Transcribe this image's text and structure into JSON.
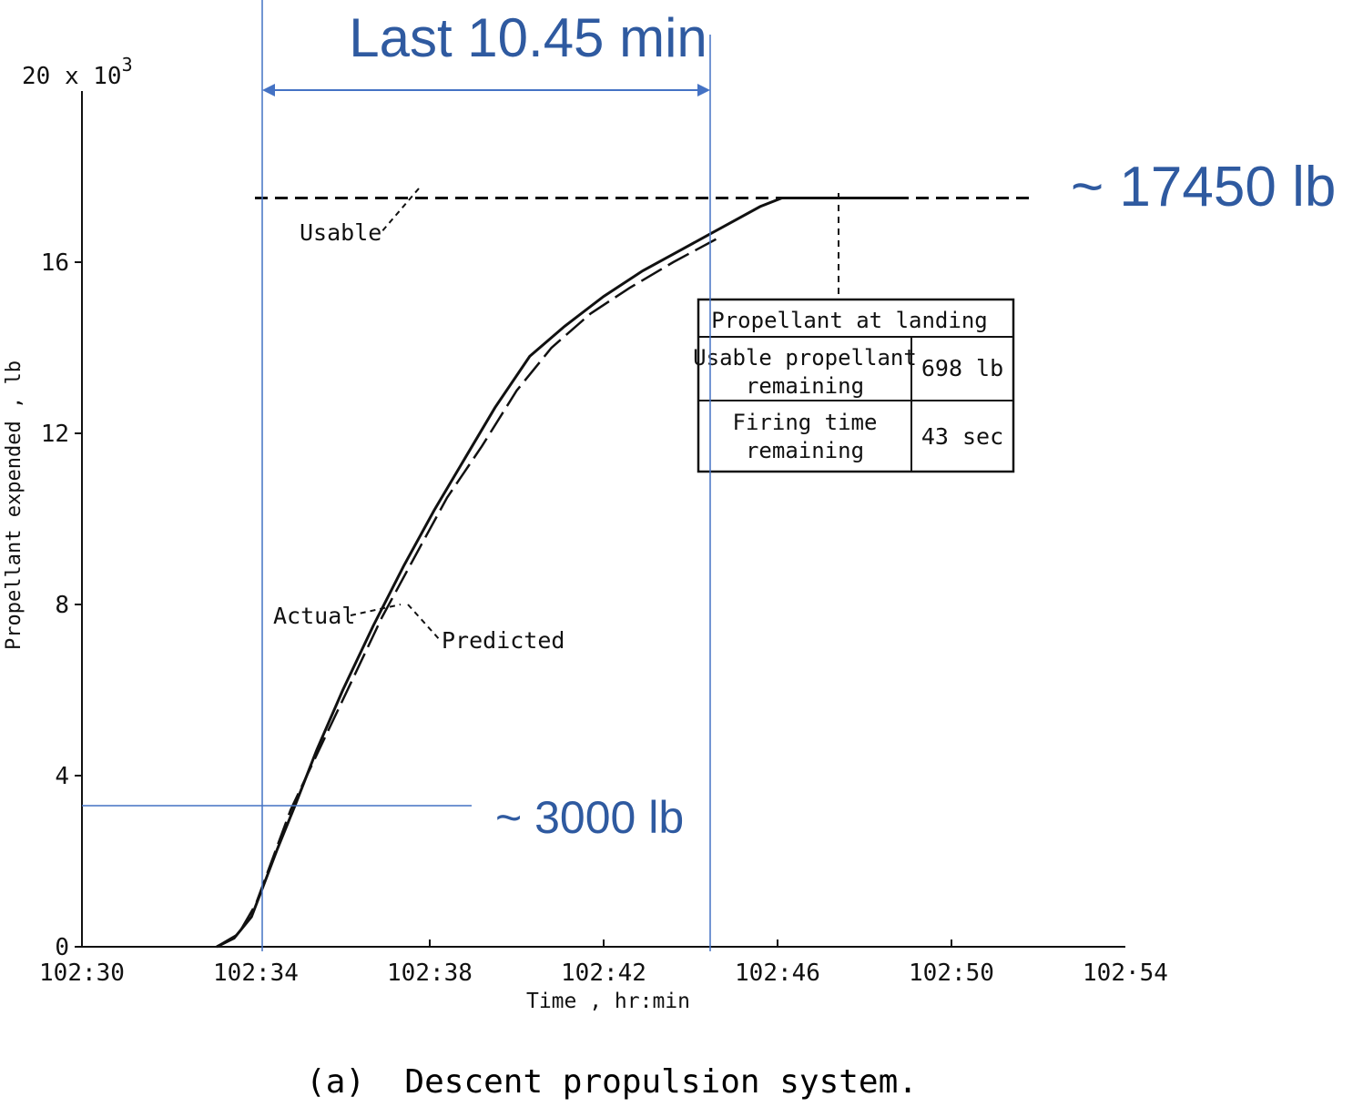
{
  "chart_data": {
    "type": "line",
    "caption": "(a)  Descent propulsion system.",
    "xlabel": "Time , hr:min",
    "ylabel": "Propellant expended , lb",
    "y_multiplier_label": "20 x 10",
    "y_multiplier_exp": "3",
    "xlim_min": [
      0,
      24
    ],
    "ylim": [
      0,
      20
    ],
    "x_ticks": [
      {
        "min": 0,
        "label": "102:30"
      },
      {
        "min": 4,
        "label": "102:34"
      },
      {
        "min": 8,
        "label": "102:38"
      },
      {
        "min": 12,
        "label": "102:42"
      },
      {
        "min": 16,
        "label": "102:46"
      },
      {
        "min": 20,
        "label": "102:50"
      },
      {
        "min": 24,
        "label": "102·54"
      }
    ],
    "x_minor_ticks": [
      8,
      12,
      16,
      20
    ],
    "y_ticks": [
      {
        "v": 0,
        "label": "0"
      },
      {
        "v": 4,
        "label": "4"
      },
      {
        "v": 8,
        "label": "8"
      },
      {
        "v": 12,
        "label": "12"
      },
      {
        "v": 16,
        "label": "16"
      }
    ],
    "usable_level": 17.5,
    "usable_label": "Usable",
    "series": [
      {
        "name": "Actual",
        "style": "solid",
        "points": [
          [
            3.1,
            0
          ],
          [
            3.5,
            0.2
          ],
          [
            3.9,
            0.7
          ],
          [
            4.2,
            1.5
          ],
          [
            4.5,
            2.3
          ],
          [
            4.9,
            3.3
          ],
          [
            5.4,
            4.6
          ],
          [
            6.0,
            6.0
          ],
          [
            6.7,
            7.5
          ],
          [
            7.4,
            8.9
          ],
          [
            8.1,
            10.2
          ],
          [
            8.8,
            11.4
          ],
          [
            9.5,
            12.6
          ],
          [
            10.3,
            13.8
          ],
          [
            11.1,
            14.5
          ],
          [
            12.0,
            15.2
          ],
          [
            12.9,
            15.8
          ],
          [
            13.8,
            16.3
          ],
          [
            14.7,
            16.8
          ],
          [
            15.6,
            17.3
          ],
          [
            16.1,
            17.5
          ],
          [
            19.0,
            17.5
          ]
        ]
      },
      {
        "name": "Predicted",
        "style": "dashed",
        "points": [
          [
            3.1,
            0
          ],
          [
            3.6,
            0.3
          ],
          [
            4.0,
            1.0
          ],
          [
            4.4,
            2.1
          ],
          [
            4.8,
            3.2
          ],
          [
            5.5,
            4.7
          ],
          [
            6.2,
            6.2
          ],
          [
            6.9,
            7.7
          ],
          [
            7.7,
            9.2
          ],
          [
            8.4,
            10.5
          ],
          [
            9.2,
            11.7
          ],
          [
            10.0,
            13.0
          ],
          [
            10.8,
            14.0
          ],
          [
            11.7,
            14.8
          ],
          [
            12.6,
            15.4
          ],
          [
            13.6,
            16.0
          ],
          [
            14.7,
            16.6
          ]
        ]
      }
    ],
    "table": {
      "title": "Propellant at landing",
      "rows": [
        {
          "label": "Usable propellant remaining",
          "value": "698 lb"
        },
        {
          "label": "Firing time remaining",
          "value": "43 sec"
        }
      ]
    },
    "annotations": {
      "last_interval": "Last 10.45 min",
      "start_level": "~ 3000 lb",
      "end_level": "~ 17450 lb",
      "start_time_min": 4.0,
      "start_value": 3.0,
      "end_time_min": 14.45
    },
    "colors": {
      "ink": "#111111",
      "annotation": "#2f5aa0",
      "annotation_line": "#4472c4"
    }
  }
}
